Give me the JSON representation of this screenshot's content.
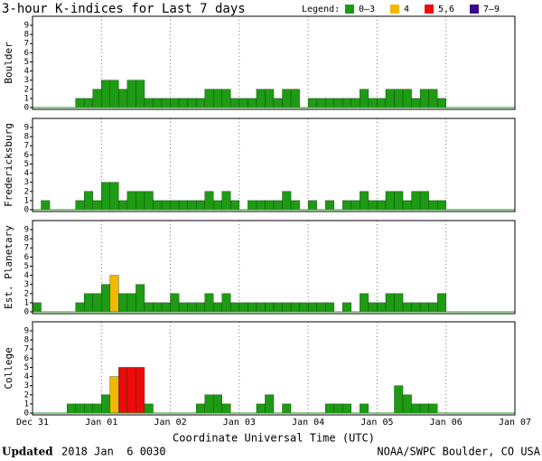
{
  "title": "3-hour K-indices for Last 7 days",
  "legend": {
    "title": "Legend:",
    "items": [
      {
        "label": "0–3",
        "min": 0,
        "max": 3,
        "color": "#1e9a14"
      },
      {
        "label": "4",
        "min": 4,
        "max": 4,
        "color": "#f2b800"
      },
      {
        "label": "5,6",
        "min": 5,
        "max": 6,
        "color": "#ee0a0a"
      },
      {
        "label": "7–9",
        "min": 7,
        "max": 9,
        "color": "#3a0a8c"
      }
    ]
  },
  "x_axis": {
    "label": "Coordinate Universal Time (UTC)",
    "xlim": [
      0,
      56
    ],
    "xticks": [
      {
        "value": 0,
        "label": "Dec 31"
      },
      {
        "value": 8,
        "label": "Jan 01"
      },
      {
        "value": 16,
        "label": "Jan 02"
      },
      {
        "value": 24,
        "label": "Jan 03"
      },
      {
        "value": 32,
        "label": "Jan 04"
      },
      {
        "value": 40,
        "label": "Jan 05"
      },
      {
        "value": 48,
        "label": "Jan 06"
      },
      {
        "value": 56,
        "label": "Jan 07"
      }
    ]
  },
  "footer": {
    "updated_label": "Updated",
    "updated_time": "2018 Jan  6 0030",
    "source": "NOAA/SWPC Boulder, CO USA"
  },
  "chart_data": [
    {
      "type": "bar",
      "ylabel": "Boulder",
      "ylim": [
        0,
        9
      ],
      "yticks": [
        0,
        1,
        2,
        3,
        4,
        5,
        6,
        7,
        8,
        9
      ],
      "values": [
        0,
        0,
        0,
        0,
        0,
        1,
        1,
        2,
        3,
        3,
        2,
        3,
        3,
        1,
        1,
        1,
        1,
        1,
        1,
        1,
        2,
        2,
        2,
        1,
        1,
        1,
        2,
        2,
        1,
        2,
        2,
        0,
        1,
        1,
        1,
        1,
        1,
        1,
        2,
        1,
        1,
        2,
        2,
        2,
        1,
        2,
        2,
        1,
        null,
        null,
        null,
        null,
        null,
        null,
        null,
        null
      ]
    },
    {
      "type": "bar",
      "ylabel": "Fredericksburg",
      "ylim": [
        0,
        9
      ],
      "yticks": [
        0,
        1,
        2,
        3,
        4,
        5,
        6,
        7,
        8,
        9
      ],
      "values": [
        0,
        1,
        0,
        0,
        0,
        1,
        2,
        1,
        3,
        3,
        1,
        2,
        2,
        2,
        1,
        1,
        1,
        1,
        1,
        1,
        2,
        1,
        2,
        1,
        0,
        1,
        1,
        1,
        1,
        2,
        1,
        0,
        1,
        0,
        1,
        0,
        1,
        1,
        2,
        1,
        1,
        2,
        2,
        1,
        2,
        2,
        1,
        1,
        null,
        null,
        null,
        null,
        null,
        null,
        null,
        null
      ]
    },
    {
      "type": "bar",
      "ylabel": "Est. Planetary",
      "ylim": [
        0,
        9
      ],
      "yticks": [
        0,
        1,
        2,
        3,
        4,
        5,
        6,
        7,
        8,
        9
      ],
      "values": [
        1,
        0,
        0,
        0,
        0,
        1,
        2,
        2,
        3,
        4,
        2,
        2,
        3,
        1,
        1,
        1,
        2,
        1,
        1,
        1,
        2,
        1,
        2,
        1,
        1,
        1,
        1,
        1,
        1,
        1,
        1,
        1,
        1,
        1,
        1,
        0,
        1,
        0,
        2,
        1,
        1,
        2,
        2,
        1,
        1,
        1,
        1,
        2,
        null,
        null,
        null,
        null,
        null,
        null,
        null,
        null
      ]
    },
    {
      "type": "bar",
      "ylabel": "College",
      "ylim": [
        0,
        9
      ],
      "yticks": [
        0,
        1,
        2,
        3,
        4,
        5,
        6,
        7,
        8,
        9
      ],
      "values": [
        0,
        0,
        0,
        0,
        1,
        1,
        1,
        1,
        2,
        4,
        5,
        5,
        5,
        1,
        0,
        0,
        0,
        0,
        0,
        1,
        2,
        2,
        1,
        0,
        0,
        0,
        1,
        2,
        0,
        1,
        0,
        0,
        0,
        0,
        1,
        1,
        1,
        0,
        1,
        0,
        0,
        0,
        3,
        2,
        1,
        1,
        1,
        0,
        null,
        null,
        null,
        null,
        null,
        null,
        null,
        null
      ]
    }
  ]
}
